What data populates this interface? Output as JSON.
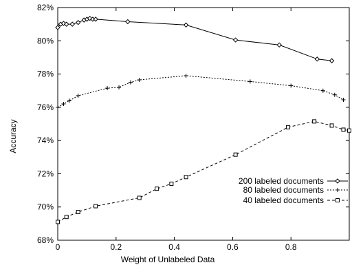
{
  "chart_data": {
    "type": "line",
    "xlabel": "Weight of Unlabeled Data",
    "ylabel": "Accuracy",
    "xlim": [
      0,
      1
    ],
    "ylim": [
      68,
      82
    ],
    "xticks": [
      0,
      0.2,
      0.4,
      0.6,
      0.8
    ],
    "xtick_labels": [
      "0",
      "0.2",
      "0.4",
      "0.6",
      "0.8"
    ],
    "yticks": [
      68,
      70,
      72,
      74,
      76,
      78,
      80,
      82
    ],
    "ytick_labels": [
      "68%",
      "70%",
      "72%",
      "74%",
      "76%",
      "78%",
      "80%",
      "82%"
    ],
    "grid": false,
    "legend": "bottom-right",
    "series": [
      {
        "name": "200 labeled documents",
        "marker": "diamond",
        "dash": "",
        "x": [
          0,
          0.01,
          0.02,
          0.03,
          0.05,
          0.07,
          0.09,
          0.1,
          0.11,
          0.12,
          0.13,
          0.24,
          0.44,
          0.61,
          0.76,
          0.89,
          0.94
        ],
        "y": [
          80.8,
          81.0,
          81.05,
          81.0,
          81.0,
          81.1,
          81.25,
          81.3,
          81.35,
          81.3,
          81.3,
          81.15,
          80.95,
          80.05,
          79.75,
          78.9,
          78.8
        ]
      },
      {
        "name": "80 labeled documents",
        "marker": "plus",
        "dash": "2,2",
        "x": [
          0,
          0.02,
          0.04,
          0.07,
          0.17,
          0.21,
          0.25,
          0.28,
          0.44,
          0.66,
          0.8,
          0.91,
          0.95,
          0.98
        ],
        "y": [
          76.0,
          76.2,
          76.4,
          76.7,
          77.15,
          77.2,
          77.5,
          77.65,
          77.9,
          77.55,
          77.3,
          77.0,
          76.75,
          76.45
        ]
      },
      {
        "name": "40 labeled documents",
        "marker": "square",
        "dash": "4,3",
        "x": [
          0,
          0.03,
          0.07,
          0.13,
          0.28,
          0.34,
          0.39,
          0.44,
          0.61,
          0.79,
          0.88,
          0.94,
          0.98,
          1.0
        ],
        "y": [
          69.1,
          69.4,
          69.7,
          70.05,
          70.55,
          71.1,
          71.4,
          71.8,
          73.15,
          74.8,
          75.15,
          74.9,
          74.65,
          74.6
        ]
      }
    ]
  }
}
